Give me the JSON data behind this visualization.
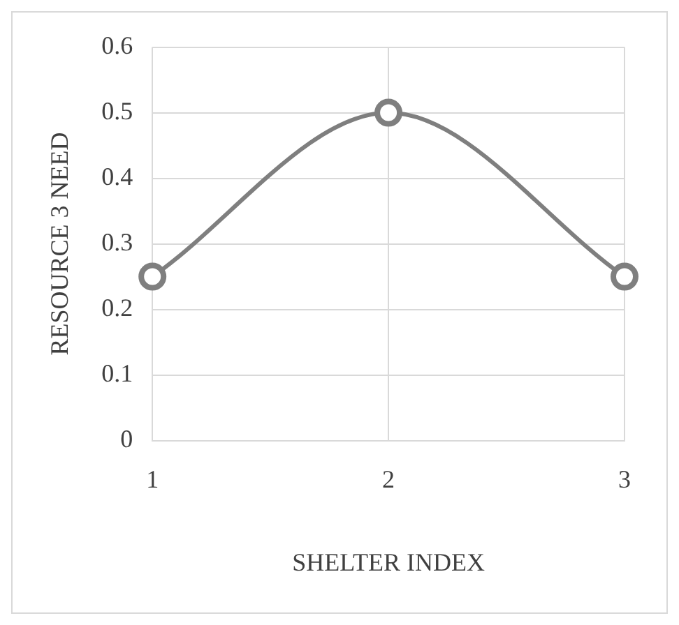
{
  "chart_data": {
    "type": "line",
    "xlabel": "SHELTER INDEX",
    "ylabel": "RESOURCE 3 NEED",
    "categories": [
      "1",
      "2",
      "3"
    ],
    "series": [
      {
        "color": "#7f7f7f",
        "values": [
          0.25,
          0.5,
          0.25
        ]
      }
    ],
    "ylim": [
      0,
      0.6
    ],
    "yticks": [
      0,
      0.1,
      0.2,
      0.3,
      0.4,
      0.5,
      0.6
    ],
    "grid": true,
    "legend": false,
    "marker": "circle",
    "line_style": "solid"
  }
}
